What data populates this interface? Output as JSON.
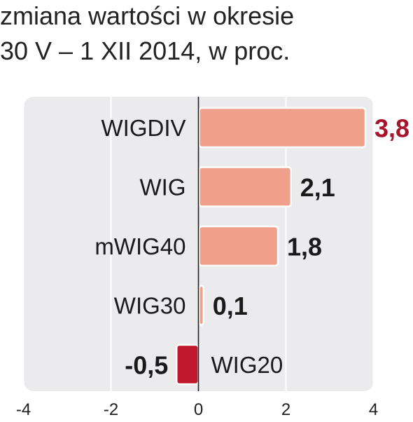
{
  "header": {
    "title_line_1": "zmiana wartości w okresie",
    "title_line_2": "30 V – 1 XII 2014, w proc."
  },
  "chart_data": {
    "type": "bar",
    "orientation": "horizontal",
    "categories": [
      "WIGDIV",
      "WIG",
      "mWIG40",
      "WIG30",
      "WIG20"
    ],
    "values": [
      3.8,
      2.1,
      1.8,
      0.1,
      -0.5
    ],
    "value_labels": [
      "3,8",
      "2,1",
      "1,8",
      "0,1",
      "-0,5"
    ],
    "xlim": [
      -4,
      4
    ],
    "xticks": [
      -4,
      -2,
      0,
      2,
      4
    ],
    "xtick_labels": [
      "-4",
      "-2",
      "0",
      "2",
      "4"
    ],
    "grid": true,
    "colors": {
      "positive_bar": "#ef9f8a",
      "negative_bar": "#c0182c",
      "highlight_label": "#a5142a",
      "panel_background": "#ebebed",
      "gridline": "#ffffff",
      "zero_axis": "#222222"
    }
  }
}
